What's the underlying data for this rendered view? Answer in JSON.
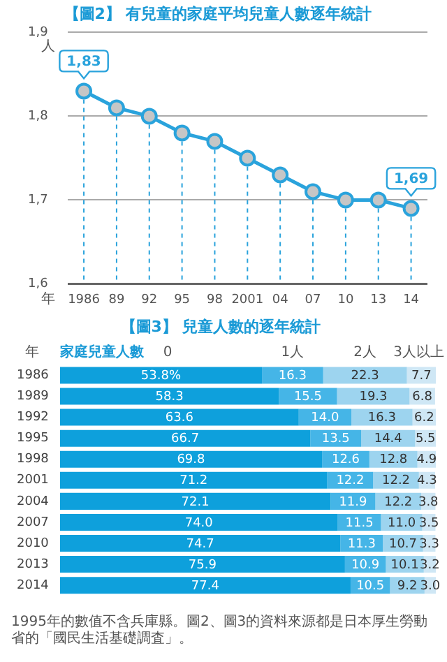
{
  "chart_data": [
    {
      "type": "line",
      "title": "【圖2】 有兒童的家庭平均兒童人數逐年統計",
      "xlabel": "年",
      "ylabel": "人",
      "categories": [
        "1986",
        "89",
        "92",
        "95",
        "98",
        "2001",
        "04",
        "07",
        "10",
        "13",
        "14"
      ],
      "values": [
        1.83,
        1.81,
        1.8,
        1.78,
        1.77,
        1.75,
        1.73,
        1.71,
        1.7,
        1.7,
        1.69
      ],
      "color": "#2aa3dc",
      "ylim": [
        1.6,
        1.9
      ],
      "yticks": [
        {
          "value": 1.6,
          "label": "1,6"
        },
        {
          "value": 1.7,
          "label": "1,7"
        },
        {
          "value": 1.8,
          "label": "1,8"
        },
        {
          "value": 1.9,
          "label": "1,9"
        }
      ],
      "grid": "y",
      "marker": "circle",
      "line_style": "solid",
      "ref_lines": [
        {
          "axis": "x",
          "value": "1986",
          "color": "#2aa3dc",
          "line_style": "dashed"
        },
        {
          "axis": "x",
          "value": "89",
          "color": "#2aa3dc",
          "line_style": "dashed"
        },
        {
          "axis": "x",
          "value": "92",
          "color": "#2aa3dc",
          "line_style": "dashed"
        },
        {
          "axis": "x",
          "value": "95",
          "color": "#2aa3dc",
          "line_style": "dashed"
        },
        {
          "axis": "x",
          "value": "98",
          "color": "#2aa3dc",
          "line_style": "dashed"
        },
        {
          "axis": "x",
          "value": "2001",
          "color": "#2aa3dc",
          "line_style": "dashed"
        },
        {
          "axis": "x",
          "value": "04",
          "color": "#2aa3dc",
          "line_style": "dashed"
        },
        {
          "axis": "x",
          "value": "07",
          "color": "#2aa3dc",
          "line_style": "dashed"
        },
        {
          "axis": "x",
          "value": "10",
          "color": "#2aa3dc",
          "line_style": "dashed"
        },
        {
          "axis": "x",
          "value": "13",
          "color": "#2aa3dc",
          "line_style": "dashed"
        },
        {
          "axis": "x",
          "value": "14",
          "color": "#2aa3dc",
          "line_style": "dashed"
        }
      ],
      "annotations": [
        {
          "text": "1,83",
          "x": "1986",
          "y": 1.83
        },
        {
          "text": "1,69",
          "x": "14",
          "y": 1.69
        }
      ]
    },
    {
      "type": "bar",
      "orientation": "horizontal",
      "stacked": true,
      "title": "【圖3】 兒童人數的逐年統計",
      "ylabel": "年",
      "legend_title": "家庭兒童人數",
      "legend": "top",
      "tick_labels": "y",
      "xlim": [
        0,
        100.1
      ],
      "categories": [
        "1986",
        "1989",
        "1992",
        "1995",
        "1998",
        "2001",
        "2004",
        "2007",
        "2010",
        "2013",
        "2014"
      ],
      "series": [
        {
          "name": "0",
          "color": "#0ea0dc",
          "values": [
            53.8,
            58.3,
            63.6,
            66.7,
            69.8,
            71.2,
            72.1,
            74.0,
            74.7,
            75.9,
            77.4
          ],
          "value_labels": [
            "53.8%",
            "58.3",
            "63.6",
            "66.7",
            "69.8",
            "71.2",
            "72.1",
            "74.0",
            "74.7",
            "75.9",
            "77.4"
          ]
        },
        {
          "name": "1人",
          "color": "#45b5e7",
          "values": [
            16.3,
            15.5,
            14.0,
            13.5,
            12.6,
            12.2,
            11.9,
            11.5,
            11.3,
            10.9,
            10.5
          ],
          "value_labels": [
            "16.3",
            "15.5",
            "14.0",
            "13.5",
            "12.6",
            "12.2",
            "11.9",
            "11.5",
            "11.3",
            "10.9",
            "10.5"
          ]
        },
        {
          "name": "2人",
          "color": "#9dd4ef",
          "values": [
            22.3,
            19.3,
            16.3,
            14.4,
            12.8,
            12.2,
            12.2,
            11.0,
            10.7,
            10.1,
            9.2
          ],
          "value_labels": [
            "22.3",
            "19.3",
            "16.3",
            "14.4",
            "12.8",
            "12.2",
            "12.2",
            "11.0",
            "10.7",
            "10.1",
            "9.2"
          ]
        },
        {
          "name": "3人以上",
          "color": "#cfe7f5",
          "values": [
            7.7,
            6.8,
            6.2,
            5.5,
            4.9,
            4.3,
            3.8,
            3.5,
            3.3,
            3.2,
            3.0
          ],
          "value_labels": [
            "7.7",
            "6.8",
            "6.2",
            "5.5",
            "4.9",
            "4.3",
            "3.8",
            "3.5",
            "3.3",
            "3.2",
            "3.0"
          ]
        }
      ],
      "annotations": [
        "1995年的數值不含兵庫縣。圖2、圖3的資料來源都是日本厚生勞動省的「國民生活基礎調査」。"
      ]
    }
  ]
}
